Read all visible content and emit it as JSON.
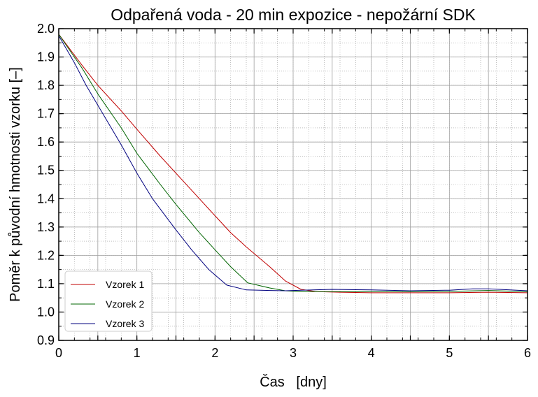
{
  "chart_data": {
    "type": "line",
    "title": "Odpařená voda - 20 min expozice - nepožární SDK",
    "xlabel": "Čas   [dny]",
    "ylabel": "Poměr k původní hmotnosti vzorku  [–]",
    "xlim": [
      0,
      6
    ],
    "ylim": [
      0.9,
      2.0
    ],
    "x_ticks": [
      "0",
      "1",
      "2",
      "3",
      "4",
      "5",
      "6"
    ],
    "y_ticks": [
      "0.9",
      "1.0",
      "1.1",
      "1.2",
      "1.3",
      "1.4",
      "1.5",
      "1.6",
      "1.7",
      "1.8",
      "1.9",
      "2.0"
    ],
    "grid": true,
    "legend_position": "lower-left",
    "series": [
      {
        "name": "Vzorek 1",
        "color": "#c00000",
        "x": [
          0,
          0.3,
          0.5,
          0.8,
          1.0,
          1.3,
          1.5,
          1.8,
          2.0,
          2.2,
          2.4,
          2.7,
          2.9,
          3.1,
          3.3,
          3.6,
          4.0,
          4.5,
          5.0,
          5.5,
          6.0
        ],
        "y": [
          1.98,
          1.87,
          1.8,
          1.71,
          1.645,
          1.55,
          1.49,
          1.4,
          1.34,
          1.28,
          1.23,
          1.16,
          1.11,
          1.08,
          1.072,
          1.07,
          1.068,
          1.068,
          1.068,
          1.07,
          1.068
        ]
      },
      {
        "name": "Vzorek 2",
        "color": "#006400",
        "x": [
          0,
          0.3,
          0.5,
          0.8,
          1.0,
          1.3,
          1.5,
          1.8,
          2.0,
          2.2,
          2.42,
          2.7,
          2.9,
          3.1,
          3.5,
          4.0,
          4.5,
          5.0,
          5.5,
          6.0
        ],
        "y": [
          1.98,
          1.86,
          1.77,
          1.65,
          1.56,
          1.45,
          1.38,
          1.28,
          1.22,
          1.16,
          1.103,
          1.085,
          1.075,
          1.072,
          1.072,
          1.072,
          1.072,
          1.073,
          1.076,
          1.072
        ]
      },
      {
        "name": "Vzorek 3",
        "color": "#00007f",
        "x": [
          0,
          0.2,
          0.35,
          0.5,
          0.8,
          1.0,
          1.2,
          1.5,
          1.7,
          1.92,
          2.15,
          2.4,
          2.7,
          2.9,
          3.1,
          3.5,
          4.0,
          4.5,
          5.0,
          5.3,
          5.5,
          6.0
        ],
        "y": [
          1.975,
          1.88,
          1.8,
          1.73,
          1.59,
          1.49,
          1.4,
          1.29,
          1.22,
          1.15,
          1.095,
          1.078,
          1.076,
          1.075,
          1.077,
          1.08,
          1.078,
          1.075,
          1.077,
          1.082,
          1.082,
          1.075
        ]
      }
    ]
  }
}
